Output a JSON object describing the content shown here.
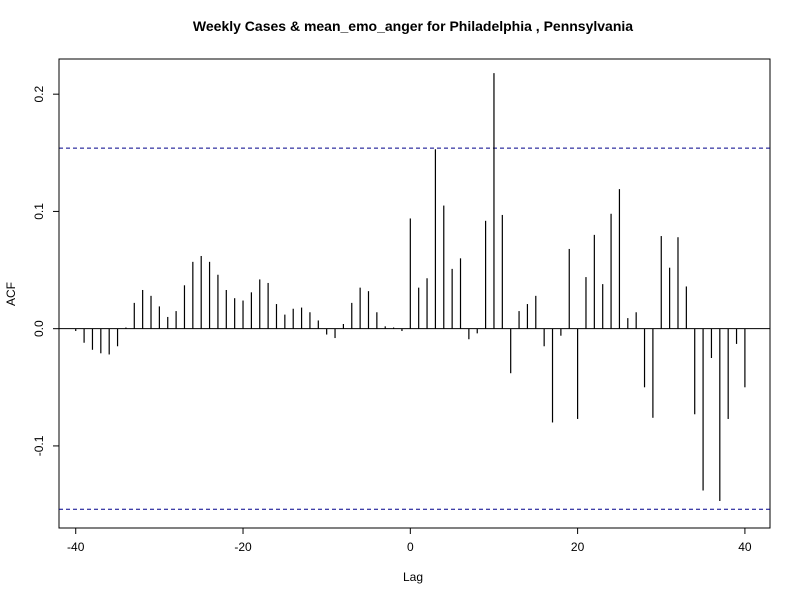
{
  "chart_data": {
    "type": "bar",
    "title": "Weekly Cases & mean_emo_anger for Philadelphia , Pennsylvania",
    "xlabel": "Lag",
    "ylabel": "ACF",
    "xlim": [
      -42,
      43
    ],
    "ylim": [
      -0.17,
      0.23
    ],
    "x_ticks": [
      "-40",
      "-20",
      "0",
      "20",
      "40"
    ],
    "y_ticks": [
      "-0.1",
      "0.0",
      "0.1",
      "0.2"
    ],
    "confidence_bound": 0.154,
    "colors": {
      "ci": "#00008B",
      "bars": "#000000"
    },
    "series": [
      {
        "x": [
          -40,
          -39,
          -38,
          -37,
          -36,
          -35,
          -34,
          -33,
          -32,
          -31,
          -30,
          -29,
          -28,
          -27,
          -26,
          -25,
          -24,
          -23,
          -22,
          -21,
          -20,
          -19,
          -18,
          -17,
          -16,
          -15,
          -14,
          -13,
          -12,
          -11,
          -10,
          -9,
          -8,
          -7,
          -6,
          -5,
          -4,
          -3,
          -2,
          -1,
          0,
          1,
          2,
          3,
          4,
          5,
          6,
          7,
          8,
          9,
          10,
          11,
          12,
          13,
          14,
          15,
          16,
          17,
          18,
          19,
          20,
          21,
          22,
          23,
          24,
          25,
          26,
          27,
          28,
          29,
          30,
          31,
          32,
          33,
          34,
          35,
          36,
          37,
          38,
          39,
          40
        ],
        "values": [
          -0.002,
          -0.012,
          -0.018,
          -0.021,
          -0.022,
          -0.015,
          0.001,
          0.022,
          0.033,
          0.028,
          0.019,
          0.01,
          0.015,
          0.037,
          0.057,
          0.062,
          0.057,
          0.046,
          0.033,
          0.026,
          0.024,
          0.031,
          0.042,
          0.039,
          0.021,
          0.012,
          0.017,
          0.018,
          0.014,
          0.007,
          -0.005,
          -0.008,
          0.004,
          0.022,
          0.035,
          0.032,
          0.014,
          0.002,
          0.001,
          -0.002,
          0.094,
          0.035,
          0.043,
          0.153,
          0.105,
          0.051,
          0.06,
          -0.009,
          -0.004,
          0.092,
          0.218,
          0.097,
          -0.038,
          0.015,
          0.021,
          0.028,
          -0.015,
          -0.08,
          -0.006,
          0.068,
          -0.077,
          0.044,
          0.08,
          0.038,
          0.098,
          0.119,
          0.009,
          0.014,
          -0.05,
          -0.076,
          0.079,
          0.052,
          0.078,
          0.036,
          -0.073,
          -0.138,
          -0.025,
          -0.147,
          -0.077,
          -0.013,
          -0.05
        ]
      }
    ]
  }
}
